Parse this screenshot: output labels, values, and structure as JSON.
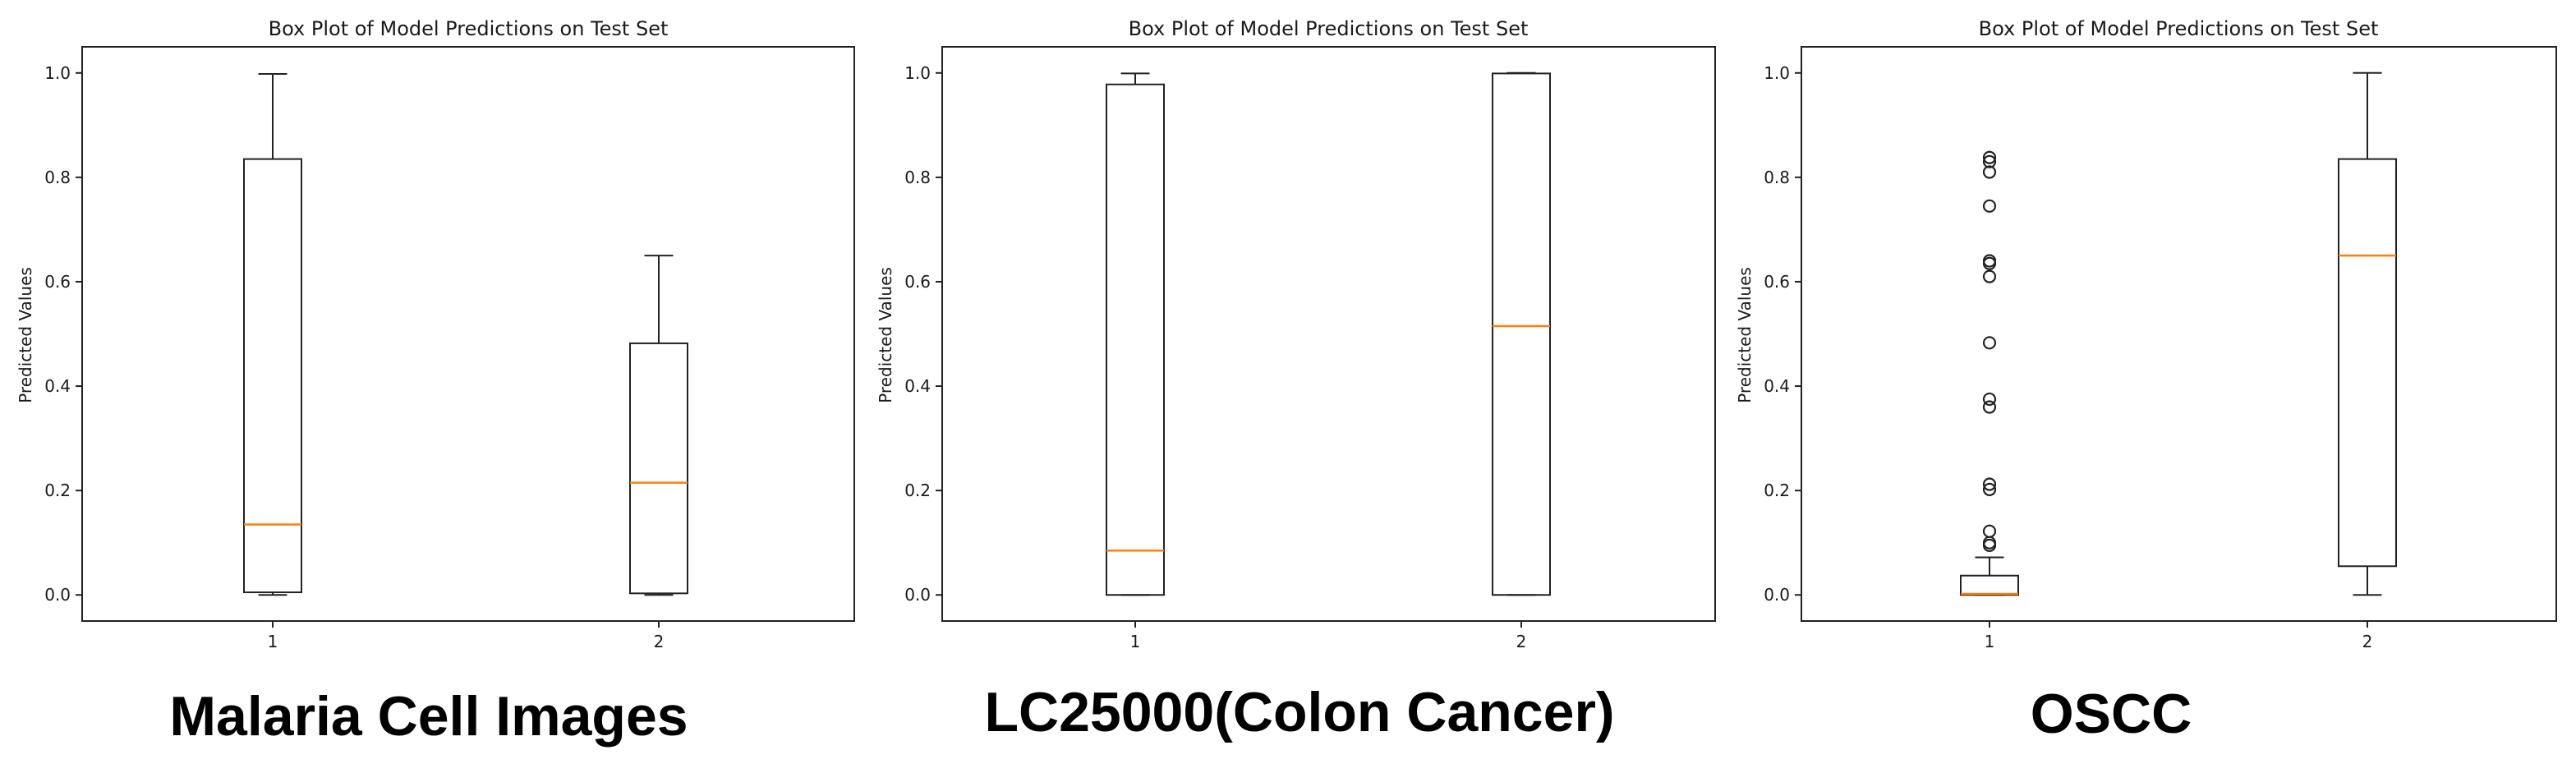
{
  "colors": {
    "box": "#222222",
    "median": "#ff7f0e",
    "background": "#ffffff"
  },
  "chart_data": [
    {
      "type": "box",
      "title": "Box Plot of Model Predictions on Test Set",
      "ylabel": "Predicted Values",
      "xlabel": "",
      "categories": [
        "1",
        "2"
      ],
      "ylim": [
        -0.05,
        1.05
      ],
      "yticks": [
        "0.0",
        "0.2",
        "0.4",
        "0.6",
        "0.8",
        "1.0"
      ],
      "grid": false,
      "caption": "Malaria Cell Images",
      "boxes": [
        {
          "category": "1",
          "whisker_low": 0.0,
          "q1": 0.005,
          "median": 0.135,
          "q3": 0.835,
          "whisker_high": 0.998,
          "outliers": []
        },
        {
          "category": "2",
          "whisker_low": 0.0,
          "q1": 0.003,
          "median": 0.215,
          "q3": 0.482,
          "whisker_high": 0.65,
          "outliers": []
        }
      ]
    },
    {
      "type": "box",
      "title": "Box Plot of Model Predictions on Test Set",
      "ylabel": "Predicted Values",
      "xlabel": "",
      "categories": [
        "1",
        "2"
      ],
      "ylim": [
        -0.05,
        1.05
      ],
      "yticks": [
        "0.0",
        "0.2",
        "0.4",
        "0.6",
        "0.8",
        "1.0"
      ],
      "grid": false,
      "caption": "LC25000(Colon Cancer)",
      "boxes": [
        {
          "category": "1",
          "whisker_low": 0.0,
          "q1": 0.0,
          "median": 0.085,
          "q3": 0.978,
          "whisker_high": 0.999,
          "outliers": []
        },
        {
          "category": "2",
          "whisker_low": 0.0,
          "q1": 0.0,
          "median": 0.515,
          "q3": 0.999,
          "whisker_high": 1.0,
          "outliers": []
        }
      ]
    },
    {
      "type": "box",
      "title": "Box Plot of Model Predictions on Test Set",
      "ylabel": "Predicted Values",
      "xlabel": "",
      "categories": [
        "1",
        "2"
      ],
      "ylim": [
        -0.05,
        1.05
      ],
      "yticks": [
        "0.0",
        "0.2",
        "0.4",
        "0.6",
        "0.8",
        "1.0"
      ],
      "grid": false,
      "caption": "OSCC",
      "boxes": [
        {
          "category": "1",
          "whisker_low": 0.0,
          "q1": 0.0,
          "median": 0.002,
          "q3": 0.037,
          "whisker_high": 0.072,
          "outliers": [
            0.838,
            0.83,
            0.81,
            0.745,
            0.64,
            0.635,
            0.61,
            0.483,
            0.375,
            0.36,
            0.212,
            0.202,
            0.122,
            0.1,
            0.095
          ]
        },
        {
          "category": "2",
          "whisker_low": 0.0,
          "q1": 0.055,
          "median": 0.65,
          "q3": 0.835,
          "whisker_high": 1.0,
          "outliers": []
        }
      ]
    }
  ]
}
